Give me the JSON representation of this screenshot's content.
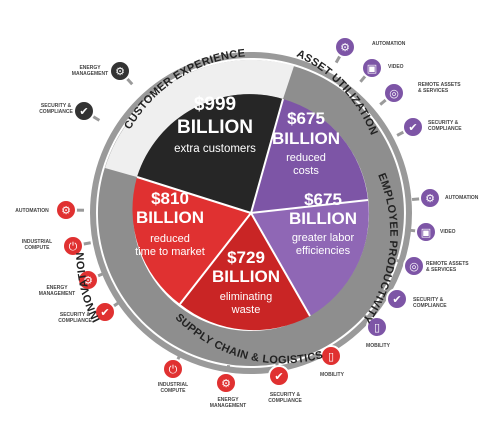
{
  "colors": {
    "dark": "#262626",
    "purple": "#7d55a6",
    "purple_light": "#8f67b5",
    "red": "#e03131",
    "red_dark": "#c92525",
    "ring_gray": "#8e8e8e",
    "ring_light": "#cfcfcf",
    "white_ring": "#f0f0f0"
  },
  "segments": [
    {
      "amount": "$999",
      "unit": "BILLION",
      "desc1": "extra customers",
      "desc2": ""
    },
    {
      "amount": "$675",
      "unit": "BILLION",
      "desc1": "reduced",
      "desc2": "costs"
    },
    {
      "amount": "$675",
      "unit": "BILLION",
      "desc1": "greater labor",
      "desc2": "efficiencies"
    },
    {
      "amount": "$729",
      "unit": "BILLION",
      "desc1": "eliminating",
      "desc2": "waste"
    },
    {
      "amount": "$810",
      "unit": "BILLION",
      "desc1": "reduced",
      "desc2": "time to market"
    }
  ],
  "ring_labels": {
    "customer": "CUSTOMER EXPERIENCE",
    "asset": "ASSET UTILIZATION",
    "employee": "EMPLOYEE PRODUCTIVITY",
    "supply": "SUPPLY CHAIN & LOGISTICS",
    "innovation": "INNOVATION"
  },
  "icons": [
    {
      "icon": "gear-icon",
      "label": [
        "ENERGY",
        "MANAGEMENT"
      ],
      "color": "#333333"
    },
    {
      "icon": "shield-check-icon",
      "label": [
        "SECURITY &",
        "COMPLIANCE"
      ],
      "color": "#333333"
    },
    {
      "icon": "gear-icon",
      "label": [
        "AUTOMATION"
      ],
      "color": "#7d55a6"
    },
    {
      "icon": "monitor-icon",
      "label": [
        "VIDEO"
      ],
      "color": "#7d55a6"
    },
    {
      "icon": "globe-icon",
      "label": [
        "REMOTE ASSETS",
        "& SERVICES"
      ],
      "color": "#7d55a6"
    },
    {
      "icon": "shield-check-icon",
      "label": [
        "SECURITY &",
        "COMPLIANCE"
      ],
      "color": "#7d55a6"
    },
    {
      "icon": "gear-icon",
      "label": [
        "AUTOMATION"
      ],
      "color": "#7d55a6"
    },
    {
      "icon": "monitor-icon",
      "label": [
        "VIDEO"
      ],
      "color": "#7d55a6"
    },
    {
      "icon": "globe-icon",
      "label": [
        "REMOTE ASSETS",
        "& SERVICES"
      ],
      "color": "#7d55a6"
    },
    {
      "icon": "shield-check-icon",
      "label": [
        "SECURITY &",
        "COMPLIANCE"
      ],
      "color": "#7d55a6"
    },
    {
      "icon": "phone-icon",
      "label": [
        "MOBILITY"
      ],
      "color": "#7d55a6"
    },
    {
      "icon": "phone-icon",
      "label": [
        "MOBILITY"
      ],
      "color": "#e03131"
    },
    {
      "icon": "shield-check-icon",
      "label": [
        "SECURITY &",
        "COMPLIANCE"
      ],
      "color": "#e03131"
    },
    {
      "icon": "gear-icon",
      "label": [
        "ENERGY",
        "MANAGEMENT"
      ],
      "color": "#e03131"
    },
    {
      "icon": "power-icon",
      "label": [
        "INDUSTRIAL",
        "COMPUTE"
      ],
      "color": "#e03131"
    },
    {
      "icon": "shield-check-icon",
      "label": [
        "SECURITY &",
        "COMPLIANCE"
      ],
      "color": "#e03131"
    },
    {
      "icon": "gear-icon",
      "label": [
        "ENERGY",
        "MANAGEMENT"
      ],
      "color": "#e03131"
    },
    {
      "icon": "power-icon",
      "label": [
        "INDUSTRIAL",
        "COMPUTE"
      ],
      "color": "#e03131"
    },
    {
      "icon": "gear-icon",
      "label": [
        "AUTOMATION"
      ],
      "color": "#e03131"
    }
  ]
}
